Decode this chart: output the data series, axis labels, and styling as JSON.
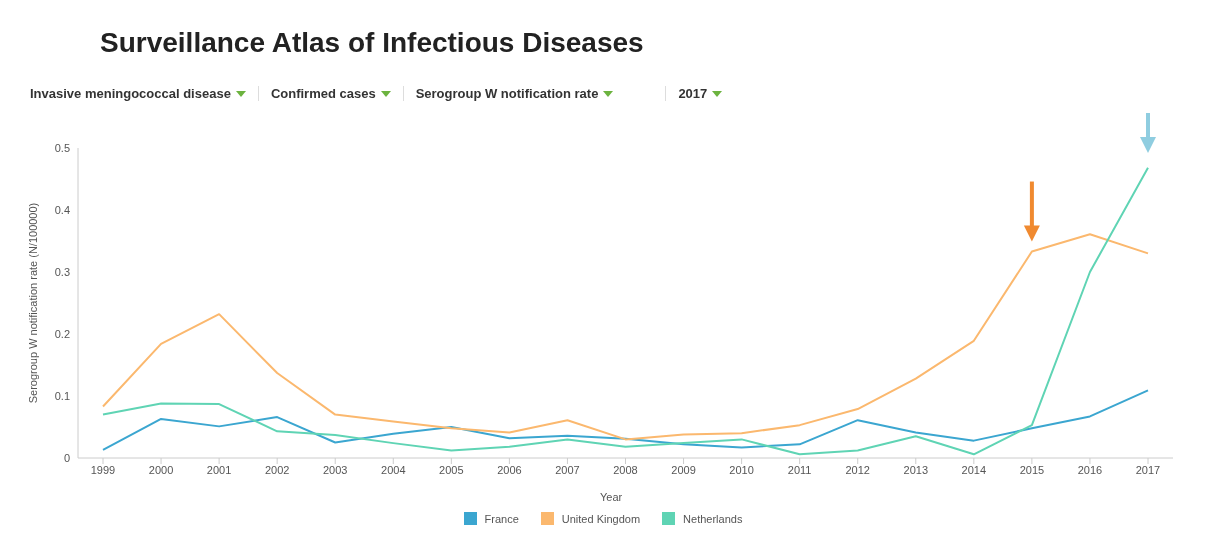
{
  "chart_data": {
    "type": "line",
    "title": "Surveillance Atlas of Infectious Diseases",
    "annotations": [
      "Invasive meningococcal disease",
      "Confirmed cases",
      "Serogroup W notification rate",
      "2017"
    ],
    "xlabel": "Year",
    "ylabel": "Serogroup W notification rate (N/100000)",
    "categories": [
      "1999",
      "2000",
      "2001",
      "2002",
      "2003",
      "2004",
      "2005",
      "2006",
      "2007",
      "2008",
      "2009",
      "2010",
      "2011",
      "2012",
      "2013",
      "2014",
      "2015",
      "2016",
      "2017"
    ],
    "series": [
      {
        "name": "France",
        "color": "#3ba6d0",
        "values": [
          0.013,
          0.063,
          0.051,
          0.066,
          0.025,
          0.039,
          0.05,
          0.032,
          0.036,
          0.031,
          0.022,
          0.017,
          0.022,
          0.061,
          0.041,
          0.028,
          0.048,
          0.067,
          0.109
        ]
      },
      {
        "name": "United Kingdom",
        "color": "#fbb86e",
        "values": [
          0.083,
          0.184,
          0.232,
          0.137,
          0.07,
          0.059,
          0.048,
          0.041,
          0.061,
          0.03,
          0.038,
          0.04,
          0.053,
          0.079,
          0.128,
          0.189,
          0.333,
          0.361,
          0.33
        ]
      },
      {
        "name": "Netherlands",
        "color": "#5fd4b4",
        "values": [
          0.07,
          0.088,
          0.087,
          0.043,
          0.037,
          0.024,
          0.012,
          0.018,
          0.03,
          0.018,
          0.024,
          0.03,
          0.006,
          0.012,
          0.035,
          0.006,
          0.053,
          0.3,
          0.468
        ]
      }
    ],
    "ylim": [
      0,
      0.5
    ],
    "yticks": [
      0,
      0.1,
      0.2,
      0.3,
      0.4,
      0.5
    ],
    "grid": false,
    "legend": "bottom",
    "marker": "none",
    "line_style": "solid"
  }
}
